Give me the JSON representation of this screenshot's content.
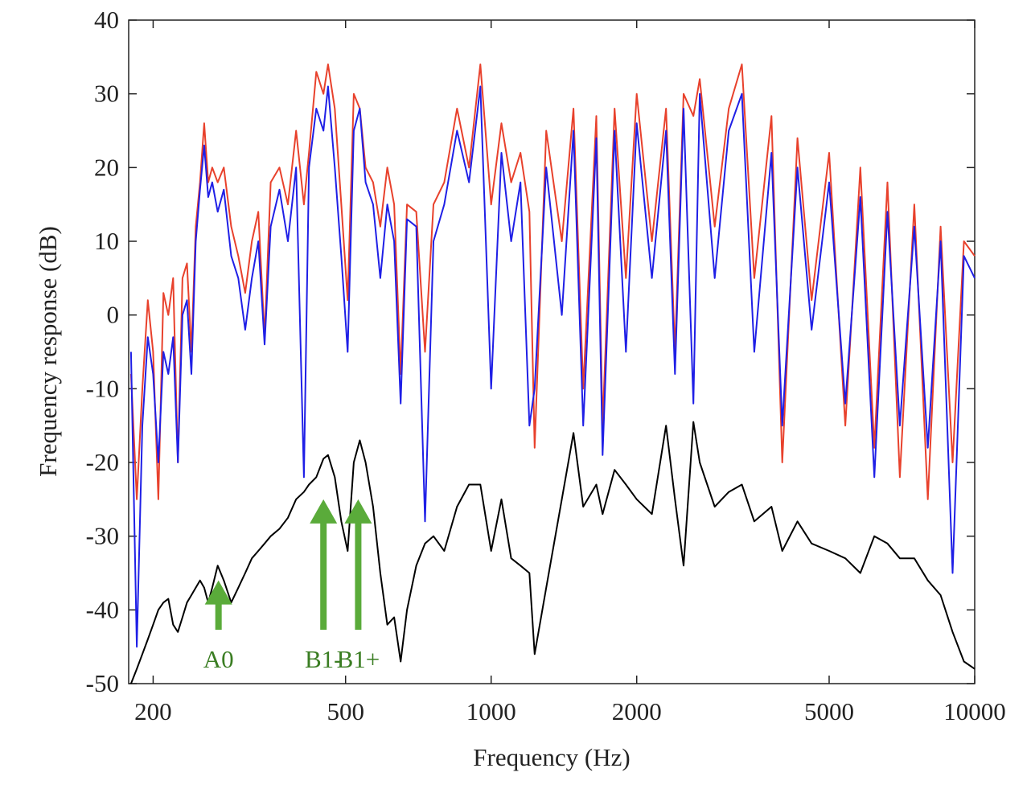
{
  "chart_data": {
    "type": "line",
    "xlabel": "Frequency (Hz)",
    "ylabel": "Frequency response (dB)",
    "xscale": "log",
    "xlim": [
      178,
      10000
    ],
    "ylim": [
      -50,
      40
    ],
    "xticks": [
      200,
      500,
      1000,
      2000,
      5000,
      10000
    ],
    "yticks": [
      -50,
      -40,
      -30,
      -20,
      -10,
      0,
      10,
      20,
      30,
      40
    ],
    "x": [
      180,
      185,
      190,
      195,
      200,
      205,
      210,
      215,
      220,
      225,
      230,
      235,
      240,
      245,
      250,
      255,
      260,
      265,
      272,
      280,
      290,
      300,
      310,
      320,
      330,
      340,
      350,
      365,
      380,
      395,
      410,
      420,
      435,
      450,
      460,
      475,
      490,
      505,
      520,
      535,
      550,
      570,
      590,
      610,
      630,
      650,
      670,
      700,
      730,
      760,
      800,
      850,
      900,
      950,
      1000,
      1050,
      1100,
      1150,
      1200,
      1230,
      1300,
      1400,
      1480,
      1550,
      1650,
      1700,
      1800,
      1900,
      2000,
      2150,
      2300,
      2400,
      2500,
      2620,
      2700,
      2900,
      3100,
      3300,
      3500,
      3800,
      4000,
      4300,
      4600,
      5000,
      5400,
      5800,
      6200,
      6600,
      7000,
      7500,
      8000,
      8500,
      9000,
      9500,
      10000
    ],
    "series": [
      {
        "color": "#e8412c",
        "values": [
          -8,
          -25,
          -10,
          2,
          -5,
          -25,
          3,
          0,
          5,
          -20,
          5,
          7,
          -5,
          12,
          18,
          26,
          18,
          20,
          18,
          20,
          12,
          8,
          3,
          10,
          14,
          -3,
          18,
          20,
          15,
          25,
          15,
          22,
          33,
          30,
          34,
          28,
          15,
          2,
          30,
          28,
          20,
          18,
          12,
          20,
          15,
          -8,
          15,
          14,
          -5,
          15,
          18,
          28,
          20,
          34,
          15,
          26,
          18,
          22,
          14,
          -18,
          25,
          10,
          28,
          -10,
          27,
          -15,
          28,
          5,
          30,
          10,
          28,
          -5,
          30,
          27,
          32,
          12,
          28,
          34,
          5,
          27,
          -20,
          24,
          2,
          22,
          -15,
          20,
          -18,
          18,
          -22,
          15,
          -25,
          12,
          -20,
          10,
          8
        ]
      },
      {
        "color": "#1f1fe6",
        "values": [
          -5,
          -45,
          -15,
          -3,
          -8,
          -20,
          -5,
          -8,
          -3,
          -20,
          0,
          2,
          -8,
          10,
          17,
          23,
          16,
          18,
          14,
          17,
          8,
          5,
          -2,
          5,
          10,
          -4,
          12,
          17,
          10,
          20,
          -22,
          20,
          28,
          25,
          31,
          20,
          8,
          -5,
          25,
          28,
          18,
          15,
          5,
          15,
          10,
          -12,
          13,
          12,
          -28,
          10,
          15,
          25,
          18,
          31,
          -10,
          22,
          10,
          18,
          -15,
          -10,
          20,
          0,
          25,
          -15,
          24,
          -19,
          25,
          -5,
          26,
          5,
          25,
          -8,
          28,
          -12,
          30,
          5,
          25,
          30,
          -5,
          22,
          -15,
          20,
          -2,
          18,
          -12,
          16,
          -22,
          14,
          -15,
          12,
          -18,
          10,
          -35,
          8,
          5
        ]
      },
      {
        "color": "#000000",
        "values": [
          -50,
          -48,
          -46,
          -44,
          -42,
          -40,
          -39,
          -38.5,
          -42,
          -43,
          -41,
          -39,
          -38,
          -37,
          -36,
          -37,
          -39,
          -37,
          -34,
          -36,
          -39,
          -37,
          -35,
          -33,
          -32,
          -31,
          -30,
          -29,
          -27.5,
          -25,
          -24,
          -23,
          -22,
          -19.5,
          -19,
          -22,
          -28,
          -32,
          -20,
          -17,
          -20,
          -26,
          -35,
          -42,
          -41,
          -47,
          -40,
          -34,
          -31,
          -30,
          -32,
          -26,
          -23,
          -23,
          -32,
          -25,
          -33,
          -34,
          -35,
          -46,
          -37,
          -25,
          -16,
          -26,
          -23,
          -27,
          -21,
          -23,
          -25,
          -27,
          -15,
          -25,
          -34,
          -14.5,
          -20,
          -26,
          -24,
          -23,
          -28,
          -26,
          -32,
          -28,
          -31,
          -32,
          -33,
          -35,
          -30,
          -31,
          -33,
          -33,
          -36,
          -38,
          -43,
          -47,
          -48
        ]
      }
    ],
    "annotations": [
      {
        "text": "A0",
        "x": 273,
        "y": -36,
        "color": "#5aab3a"
      },
      {
        "text": "B1-",
        "x": 450,
        "y": -25,
        "color": "#5aab3a"
      },
      {
        "text": "B1+",
        "x": 531,
        "y": -25,
        "color": "#5aab3a"
      }
    ]
  }
}
